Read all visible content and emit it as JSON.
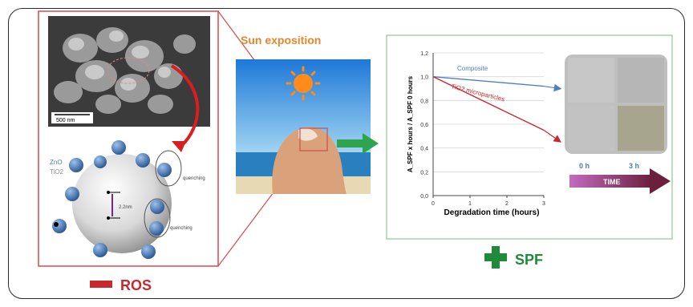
{
  "sun_label": "Sun exposition",
  "minus_label": "ROS",
  "plus_label": "SPF",
  "sem": {
    "scale_label": "500 nm"
  },
  "particle_legend": {
    "zno": "ZnO",
    "tio2": "TiO2"
  },
  "particle_annotations": {
    "quenching_top": "quenching",
    "quenching_bottom": "quenching",
    "distance": "2.2nm"
  },
  "chart_data": {
    "type": "line",
    "ylabel": "A_SPF x hours / A_SPF 0 hours",
    "xlabel": "Degradation time (hours)",
    "xticks": [
      "0",
      "1",
      "2",
      "3"
    ],
    "yticks": [
      "0,0",
      "0,2",
      "0,4",
      "0,6",
      "0,8",
      "1,0",
      "1,2"
    ],
    "xlim": [
      0,
      3
    ],
    "ylim": [
      0,
      1.2
    ],
    "series": [
      {
        "name": "Composite",
        "x": [
          0,
          3
        ],
        "y": [
          1.0,
          0.92
        ],
        "color": "#4d7fc0"
      },
      {
        "name": "TiO2 microparticles",
        "x": [
          0,
          3
        ],
        "y": [
          1.0,
          0.55
        ],
        "color": "#c8282e"
      }
    ]
  },
  "time_panel": {
    "start_label": "0 h",
    "end_label": "3 h",
    "arrow_label": "TIME"
  },
  "colors": {
    "ros": "#c8282e",
    "spf": "#1f8a3a",
    "sun": "#e8862a",
    "time_arrow": "#7a2a5a"
  }
}
